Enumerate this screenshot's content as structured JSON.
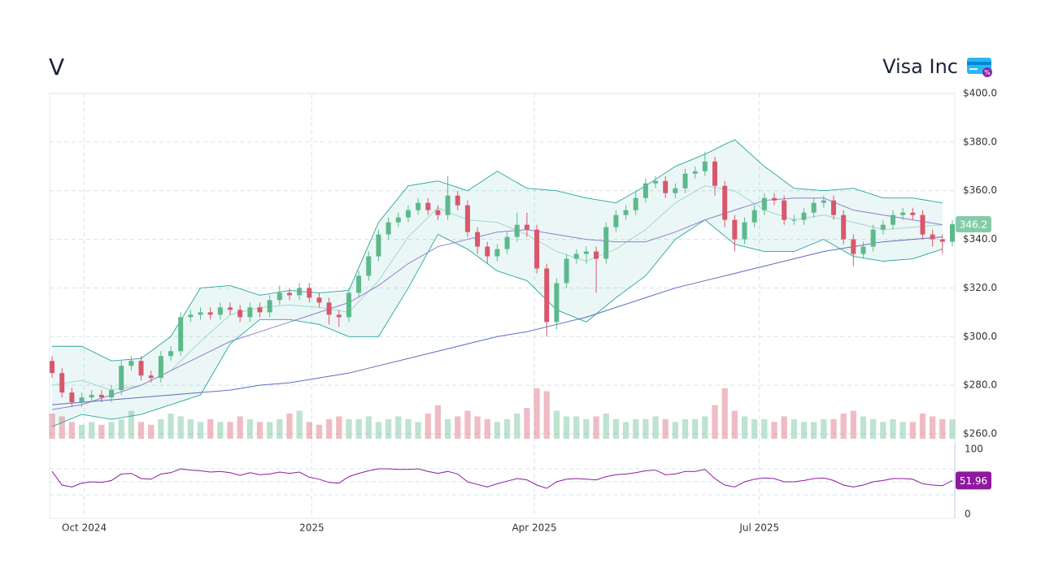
{
  "header": {
    "symbol": "V",
    "name": "Visa Inc"
  },
  "chart_data": [
    {
      "type": "candlestick",
      "up_color": "#5cb98b",
      "down_color": "#d9576c",
      "grid": true,
      "xlim": [
        0,
        366
      ],
      "xticks": [
        {
          "value": 14,
          "label": "Oct 2024"
        },
        {
          "value": 106,
          "label": "2025"
        },
        {
          "value": 196,
          "label": "Apr 2025"
        },
        {
          "value": 287,
          "label": "Jul 2025"
        }
      ],
      "ylim": [
        260,
        400
      ],
      "yticks": [
        {
          "value": 260,
          "label": "$260.0"
        },
        {
          "value": 280,
          "label": "$280.0"
        },
        {
          "value": 300,
          "label": "$300.0"
        },
        {
          "value": 320,
          "label": "$320.0"
        },
        {
          "value": 340,
          "label": "$340.0"
        },
        {
          "value": 360,
          "label": "$360.0"
        },
        {
          "value": 380,
          "label": "$380.0"
        },
        {
          "value": 400,
          "label": "$400.0"
        }
      ],
      "x": [
        1,
        5,
        9,
        13,
        17,
        21,
        25,
        29,
        33,
        37,
        41,
        45,
        49,
        53,
        57,
        61,
        65,
        69,
        73,
        77,
        81,
        85,
        89,
        93,
        97,
        101,
        105,
        109,
        113,
        117,
        121,
        125,
        129,
        133,
        137,
        141,
        145,
        149,
        153,
        157,
        161,
        165,
        169,
        173,
        177,
        181,
        185,
        189,
        193,
        197,
        201,
        205,
        209,
        213,
        217,
        221,
        225,
        229,
        233,
        237,
        241,
        245,
        249,
        253,
        257,
        261,
        265,
        269,
        273,
        277,
        281,
        285,
        289,
        293,
        297,
        301,
        305,
        309,
        313,
        317,
        321,
        325,
        329,
        333,
        337,
        341,
        345,
        349,
        353,
        357,
        361,
        365
      ],
      "open": [
        290,
        285,
        277,
        273,
        275,
        276,
        275,
        278,
        288,
        290,
        284,
        283,
        292,
        294,
        308,
        309,
        310,
        309,
        312,
        311,
        308,
        312,
        310,
        315,
        318,
        317,
        320,
        316,
        314,
        309,
        308,
        318,
        325,
        333,
        342,
        347,
        349,
        352,
        355,
        352,
        350,
        358,
        354,
        343,
        337,
        333,
        336,
        341,
        346,
        344,
        328,
        306,
        322,
        332,
        334,
        335,
        332,
        345,
        350,
        352,
        357,
        363,
        364,
        359,
        361,
        367,
        368,
        372,
        362,
        348,
        340,
        347,
        352,
        357,
        356,
        348,
        348,
        351,
        355,
        356,
        350,
        340,
        334,
        337,
        344,
        346,
        350,
        351,
        350,
        342,
        340,
        339
      ],
      "high": [
        292,
        287,
        279,
        277,
        278,
        278,
        280,
        290,
        292,
        292,
        286,
        294,
        296,
        310,
        311,
        312,
        312,
        314,
        314,
        313,
        314,
        314,
        317,
        321,
        320,
        322,
        322,
        318,
        316,
        311,
        320,
        327,
        335,
        344,
        349,
        351,
        354,
        357,
        357,
        354,
        366,
        360,
        356,
        345,
        339,
        338,
        343,
        351,
        351,
        346,
        330,
        324,
        334,
        336,
        337,
        337,
        347,
        352,
        354,
        360,
        365,
        366,
        366,
        363,
        369,
        370,
        376,
        374,
        364,
        350,
        349,
        354,
        359,
        359,
        358,
        350,
        353,
        357,
        358,
        358,
        352,
        342,
        339,
        346,
        348,
        352,
        353,
        353,
        352,
        344,
        342,
        348
      ],
      "low": [
        283,
        275,
        271,
        271,
        273,
        273,
        273,
        276,
        286,
        282,
        281,
        281,
        290,
        292,
        306,
        307,
        307,
        307,
        309,
        306,
        306,
        308,
        308,
        313,
        315,
        315,
        314,
        312,
        305,
        304,
        306,
        316,
        323,
        331,
        340,
        345,
        347,
        350,
        350,
        348,
        348,
        352,
        341,
        334,
        330,
        331,
        334,
        339,
        341,
        326,
        300,
        303,
        320,
        330,
        330,
        318,
        330,
        343,
        348,
        350,
        355,
        361,
        357,
        357,
        359,
        365,
        366,
        358,
        345,
        335,
        338,
        345,
        350,
        354,
        346,
        346,
        346,
        349,
        353,
        348,
        338,
        329,
        332,
        335,
        342,
        344,
        348,
        348,
        340,
        337,
        334,
        337
      ],
      "close": [
        285,
        277,
        273,
        275,
        276,
        275,
        278,
        288,
        290,
        284,
        283,
        292,
        294,
        308,
        309,
        310,
        309,
        312,
        311,
        308,
        312,
        310,
        315,
        318,
        317,
        320,
        316,
        314,
        309,
        308,
        318,
        325,
        333,
        342,
        347,
        349,
        352,
        355,
        352,
        350,
        358,
        354,
        343,
        337,
        333,
        336,
        341,
        346,
        344,
        328,
        306,
        322,
        332,
        334,
        335,
        332,
        345,
        350,
        352,
        357,
        363,
        364,
        359,
        361,
        367,
        368,
        372,
        362,
        348,
        340,
        347,
        352,
        357,
        356,
        348,
        348,
        351,
        355,
        356,
        350,
        340,
        334,
        337,
        344,
        346,
        350,
        351,
        350,
        342,
        340,
        339,
        346.2
      ],
      "volume": [
        9,
        8,
        6,
        5,
        6,
        5,
        6,
        7,
        10,
        6,
        5,
        7,
        9,
        8,
        7,
        6,
        7,
        6,
        6,
        8,
        7,
        6,
        6,
        7,
        9,
        10,
        6,
        5,
        7,
        8,
        7,
        7,
        8,
        6,
        7,
        8,
        7,
        6,
        9,
        12,
        7,
        8,
        10,
        8,
        7,
        6,
        7,
        9,
        11,
        18,
        17,
        10,
        8,
        8,
        7,
        8,
        9,
        7,
        6,
        7,
        7,
        8,
        7,
        6,
        7,
        7,
        8,
        12,
        18,
        10,
        8,
        7,
        7,
        6,
        8,
        7,
        6,
        6,
        7,
        7,
        9,
        10,
        8,
        7,
        6,
        7,
        6,
        6,
        9,
        8,
        7,
        7
      ],
      "last_label": "346.2",
      "band": {
        "color": "#26a69a",
        "x": [
          1,
          13,
          25,
          37,
          49,
          61,
          73,
          85,
          97,
          109,
          121,
          133,
          145,
          157,
          169,
          181,
          193,
          205,
          217,
          229,
          241,
          253,
          265,
          277,
          289,
          301,
          313,
          325,
          337,
          349,
          361
        ],
        "upper": [
          296,
          296,
          290,
          291,
          300,
          320,
          321,
          317,
          319,
          318,
          319,
          347,
          362,
          364,
          360,
          368,
          361,
          360,
          357,
          355,
          362,
          370,
          375,
          381,
          370,
          361,
          360,
          361,
          357,
          357,
          355
        ],
        "lower": [
          263,
          268,
          266,
          268,
          272,
          276,
          297,
          307,
          307,
          305,
          300,
          300,
          320,
          342,
          336,
          327,
          323,
          311,
          306,
          316,
          325,
          340,
          348,
          338,
          335,
          335,
          340,
          333,
          331,
          332,
          336
        ]
      },
      "lines": [
        {
          "color": "#9fd8cf",
          "x": [
            1,
            13,
            25,
            37,
            49,
            61,
            73,
            85,
            97,
            109,
            121,
            133,
            145,
            157,
            169,
            181,
            193,
            205,
            217,
            229,
            241,
            253,
            265,
            277,
            289,
            301,
            313,
            325,
            337,
            349,
            361
          ],
          "values": [
            280,
            282,
            278,
            280,
            286,
            298,
            309,
            312,
            313,
            312,
            310,
            323,
            341,
            353,
            348,
            347,
            342,
            335,
            331,
            336,
            344,
            355,
            362,
            360,
            352,
            348,
            350,
            347,
            344,
            345,
            346
          ]
        },
        {
          "color": "#8f7fd0",
          "x": [
            1,
            13,
            25,
            37,
            49,
            61,
            73,
            85,
            97,
            109,
            121,
            133,
            145,
            157,
            169,
            181,
            193,
            205,
            217,
            229,
            241,
            253,
            265,
            277,
            289,
            301,
            313,
            325,
            337,
            349,
            361
          ],
          "values": [
            270,
            272,
            276,
            280,
            286,
            292,
            298,
            302,
            306,
            310,
            314,
            321,
            330,
            337,
            340,
            343,
            344,
            342,
            340,
            339,
            339,
            343,
            348,
            352,
            356,
            357,
            357,
            352,
            350,
            348,
            346
          ]
        },
        {
          "color": "#5c6bc0",
          "x": [
            1,
            13,
            25,
            37,
            49,
            61,
            73,
            85,
            97,
            109,
            121,
            133,
            145,
            157,
            169,
            181,
            193,
            205,
            217,
            229,
            241,
            253,
            265,
            277,
            289,
            301,
            313,
            325,
            337,
            349,
            361
          ],
          "values": [
            272,
            273,
            274,
            275,
            276,
            277,
            278,
            280,
            281,
            283,
            285,
            288,
            291,
            294,
            297,
            300,
            302,
            305,
            308,
            312,
            316,
            320,
            323,
            326,
            329,
            332,
            335,
            337,
            339,
            340,
            341
          ]
        }
      ]
    },
    {
      "type": "line",
      "color": "#8e1a9e",
      "ylim": [
        0,
        100
      ],
      "yticks": [
        0,
        100
      ],
      "reference_lines": [
        30,
        50,
        70
      ],
      "values": [
        66,
        45,
        42,
        48,
        50,
        49,
        52,
        62,
        63,
        55,
        54,
        62,
        64,
        70,
        68,
        67,
        65,
        66,
        64,
        60,
        64,
        61,
        62,
        65,
        63,
        65,
        57,
        54,
        49,
        48,
        58,
        63,
        67,
        70,
        70,
        69,
        69,
        70,
        66,
        63,
        66,
        62,
        50,
        46,
        42,
        47,
        51,
        55,
        53,
        45,
        40,
        50,
        54,
        55,
        54,
        53,
        58,
        61,
        62,
        64,
        67,
        68,
        61,
        62,
        66,
        66,
        69,
        55,
        45,
        42,
        50,
        54,
        56,
        55,
        50,
        50,
        52,
        55,
        56,
        52,
        45,
        42,
        45,
        50,
        52,
        55,
        55,
        54,
        47,
        45,
        44,
        51.96
      ],
      "last_label": "51.96"
    }
  ]
}
